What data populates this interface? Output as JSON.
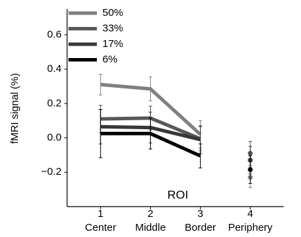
{
  "chart_data": {
    "type": "line",
    "y_label": "fMRI signal (%)",
    "x_label": "ROI",
    "x": [
      1,
      2,
      3,
      4
    ],
    "categories": [
      "Center",
      "Middle",
      "Border",
      "Periphery"
    ],
    "xlim": [
      0.33,
      4.67
    ],
    "xticks": [
      1,
      2,
      3,
      4
    ],
    "ylim": [
      -0.4,
      0.75
    ],
    "yticks": [
      {
        "value": -0.2,
        "label": "−0.2"
      },
      {
        "value": 0,
        "label": "0.0"
      },
      0.2,
      0.4,
      0.6
    ],
    "connect_through": 3,
    "legend": "upper left",
    "series": [
      {
        "name": "50%",
        "color": "#808080",
        "values": [
          0.31,
          0.285,
          0.02,
          -0.23
        ],
        "errors": [
          0.06,
          0.07,
          0.08,
          0.06
        ]
      },
      {
        "name": "33%",
        "color": "#585858",
        "values": [
          0.11,
          0.115,
          -0.005,
          -0.09
        ],
        "errors": [
          0.08,
          0.07,
          0.07,
          0.07
        ]
      },
      {
        "name": "17%",
        "color": "#383838",
        "values": [
          0.065,
          0.06,
          -0.01,
          -0.13
        ],
        "errors": [
          0.1,
          0.09,
          0.08,
          0.08
        ]
      },
      {
        "name": "6%",
        "color": "#000000",
        "values": [
          0.025,
          0.025,
          -0.105,
          -0.185
        ],
        "errors": [
          0.14,
          0.09,
          0.07,
          0.08
        ]
      }
    ]
  }
}
